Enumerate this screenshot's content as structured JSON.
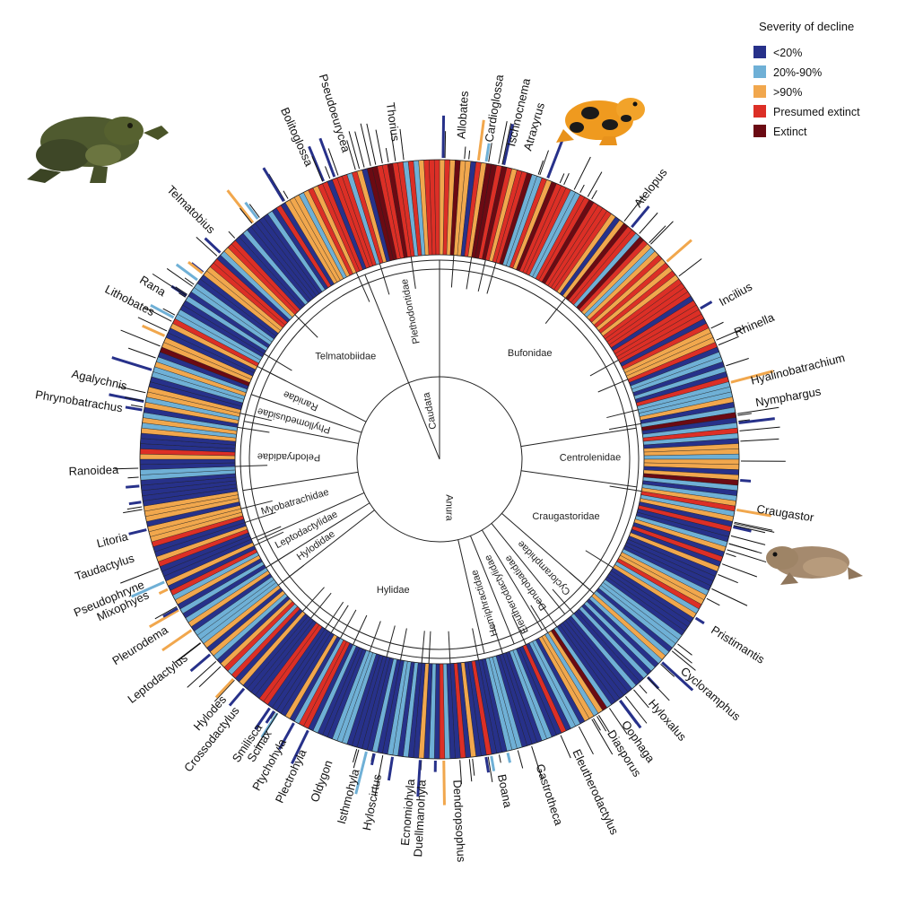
{
  "chart_data": {
    "type": "radial-bar",
    "title": "",
    "legend": {
      "title": "Severity of decline",
      "position": "top-right",
      "items": [
        {
          "key": "lt20",
          "label": "<20%",
          "color": "#27318a"
        },
        {
          "key": "20to90",
          "label": "20%-90%",
          "color": "#6fb0d6"
        },
        {
          "key": "gt90",
          "label": ">90%",
          "color": "#f1a74d"
        },
        {
          "key": "presumed",
          "label": "Presumed extinct",
          "color": "#dc2f26"
        },
        {
          "key": "extinct",
          "label": "Extinct",
          "color": "#6b0a13"
        }
      ]
    },
    "orders": [
      {
        "name": "Caudata",
        "start_deg": 338,
        "end_deg": 360
      },
      {
        "name": "Anura",
        "start_deg": 0,
        "end_deg": 338
      }
    ],
    "families": [
      {
        "name": "Bufonidae",
        "start_deg": 0,
        "end_deg": 81
      },
      {
        "name": "Centrolenidae",
        "start_deg": 81,
        "end_deg": 98
      },
      {
        "name": "Craugastoridae",
        "start_deg": 98,
        "end_deg": 131
      },
      {
        "name": "Cycloramphidae",
        "start_deg": 131,
        "end_deg": 141
      },
      {
        "name": "Dendrobatidae",
        "start_deg": 141,
        "end_deg": 149
      },
      {
        "name": "Eleutherodactylidae",
        "start_deg": 149,
        "end_deg": 158
      },
      {
        "name": "Hemiphractidae",
        "start_deg": 158,
        "end_deg": 167
      },
      {
        "name": "Hylidae",
        "start_deg": 167,
        "end_deg": 232
      },
      {
        "name": "Hylodidae",
        "start_deg": 232,
        "end_deg": 238
      },
      {
        "name": "Leptodactylidae",
        "start_deg": 238,
        "end_deg": 246
      },
      {
        "name": "Myobatrachidae",
        "start_deg": 246,
        "end_deg": 261
      },
      {
        "name": "Pelodryadidae",
        "start_deg": 261,
        "end_deg": 281
      },
      {
        "name": "Phyllomedusidae",
        "start_deg": 281,
        "end_deg": 289
      },
      {
        "name": "Ranidae",
        "start_deg": 289,
        "end_deg": 297
      },
      {
        "name": "Telmatobiidae",
        "start_deg": 297,
        "end_deg": 338
      },
      {
        "name": "Plethodontidae",
        "start_deg": 338,
        "end_deg": 360
      }
    ],
    "genera": [
      {
        "name": "Allobates",
        "angle_deg": 4
      },
      {
        "name": "Cardioglossa",
        "angle_deg": 9
      },
      {
        "name": "Ischnocnema",
        "angle_deg": 13
      },
      {
        "name": "Atraxyrus",
        "angle_deg": 16
      },
      {
        "name": "Atelopus",
        "angle_deg": 38
      },
      {
        "name": "Incilius",
        "angle_deg": 61
      },
      {
        "name": "Rhinella",
        "angle_deg": 67
      },
      {
        "name": "Hyalinobatrachium",
        "angle_deg": 76
      },
      {
        "name": "Nymphargus",
        "angle_deg": 80
      },
      {
        "name": "Craugastor",
        "angle_deg": 99
      },
      {
        "name": "Pristimantis",
        "angle_deg": 122
      },
      {
        "name": "Cycloramphus",
        "angle_deg": 131
      },
      {
        "name": "Hyloxalus",
        "angle_deg": 139
      },
      {
        "name": "Oophaga",
        "angle_deg": 145
      },
      {
        "name": "Diasporus",
        "angle_deg": 148
      },
      {
        "name": "Eleutherodactylus",
        "angle_deg": 155
      },
      {
        "name": "Gastrotheca",
        "angle_deg": 162
      },
      {
        "name": "Boana",
        "angle_deg": 169
      },
      {
        "name": "Dendropsophus",
        "angle_deg": 177
      },
      {
        "name": "Duellmanohyla",
        "angle_deg": 183
      },
      {
        "name": "Ecnomiohyla",
        "angle_deg": 185
      },
      {
        "name": "Hyloscirtus",
        "angle_deg": 191
      },
      {
        "name": "Isthmohyla",
        "angle_deg": 195
      },
      {
        "name": "Oldygon",
        "angle_deg": 200
      },
      {
        "name": "Plectrohyla",
        "angle_deg": 205
      },
      {
        "name": "Ptychohyla",
        "angle_deg": 209
      },
      {
        "name": "Scinax",
        "angle_deg": 212
      },
      {
        "name": "Smilisca",
        "angle_deg": 214
      },
      {
        "name": "Crossodactylus",
        "angle_deg": 219
      },
      {
        "name": "Hylodes",
        "angle_deg": 222
      },
      {
        "name": "Leptodactylus",
        "angle_deg": 232
      },
      {
        "name": "Pleurodema",
        "angle_deg": 238
      },
      {
        "name": "Mixophyes",
        "angle_deg": 245
      },
      {
        "name": "Pseudophryne",
        "angle_deg": 247
      },
      {
        "name": "Taudactylus",
        "angle_deg": 252
      },
      {
        "name": "Litoria",
        "angle_deg": 256
      },
      {
        "name": "Ranoidea",
        "angle_deg": 268
      },
      {
        "name": "Phrynobatrachus",
        "angle_deg": 279
      },
      {
        "name": "Agalychnis",
        "angle_deg": 283
      },
      {
        "name": "Lithobates",
        "angle_deg": 297
      },
      {
        "name": "Rana",
        "angle_deg": 301
      },
      {
        "name": "Telmatobius",
        "angle_deg": 315
      },
      {
        "name": "Bolitoglossa",
        "angle_deg": 336
      },
      {
        "name": "Pseudoeurycea",
        "angle_deg": 343
      },
      {
        "name": "Thorius",
        "angle_deg": 352
      }
    ],
    "species_count": 360,
    "ring_note": "Each thin wedge in the outer ring is one species colored by severity of decline; short outer spikes mark species; ring color blocks follow approximate visible pattern."
  },
  "photos": [
    {
      "name": "telmatobius-frog-photo"
    },
    {
      "name": "atelopus-toad-photo"
    },
    {
      "name": "craugastor-frog-photo"
    }
  ]
}
